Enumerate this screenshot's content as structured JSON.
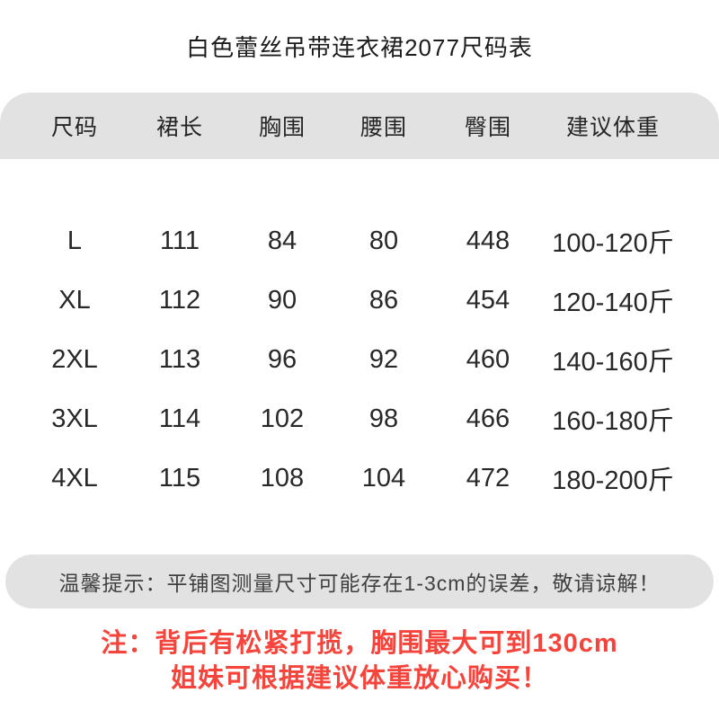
{
  "title": "白色蕾丝吊带连衣裙2077尺码表",
  "colors": {
    "bar_gray": "#e2e2e2",
    "warning_red": "#f5443b"
  },
  "size_table": {
    "headers": [
      "尺码",
      "裙长",
      "胸围",
      "腰围",
      "臀围",
      "建议体重"
    ],
    "rows": [
      [
        "L",
        "111",
        "84",
        "80",
        "448",
        "100-120斤"
      ],
      [
        "XL",
        "112",
        "90",
        "86",
        "454",
        "120-140斤"
      ],
      [
        "2XL",
        "113",
        "96",
        "92",
        "460",
        "140-160斤"
      ],
      [
        "3XL",
        "114",
        "102",
        "98",
        "466",
        "160-180斤"
      ],
      [
        "4XL",
        "115",
        "108",
        "104",
        "472",
        "180-200斤"
      ]
    ]
  },
  "tip": "温馨提示：平铺图测量尺寸可能存在1-3cm的误差，敬请谅解！",
  "warning": {
    "line1": "注：背后有松紧打揽，胸围最大可到130cm",
    "line2": "姐妹可根据建议体重放心购买！"
  }
}
